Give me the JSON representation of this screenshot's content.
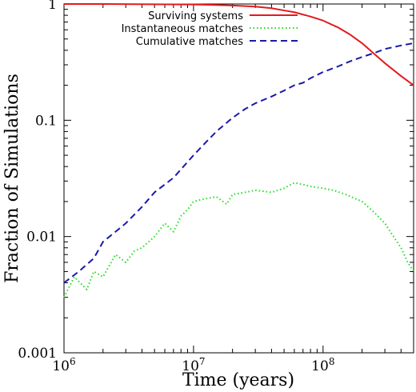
{
  "chart_data": {
    "type": "line",
    "title": "",
    "xlabel": "Time (years)",
    "ylabel": "Fraction of Simulations",
    "x_scale": "log",
    "y_scale": "log",
    "xlim": [
      1000000,
      500000000
    ],
    "ylim": [
      0.001,
      1
    ],
    "grid": false,
    "legend_position": "top-right",
    "x_ticks": [
      {
        "value": 1000000,
        "base": "10",
        "exp": "6"
      },
      {
        "value": 10000000,
        "base": "10",
        "exp": "7"
      },
      {
        "value": 100000000,
        "base": "10",
        "exp": "8"
      }
    ],
    "y_ticks": [
      {
        "value": 0.001,
        "label": "0.001"
      },
      {
        "value": 0.01,
        "label": "0.01"
      },
      {
        "value": 0.1,
        "label": "0.1"
      },
      {
        "value": 1,
        "label": "1"
      }
    ],
    "series": [
      {
        "name": "Surviving systems",
        "color": "#e41a1c",
        "style": "solid",
        "x": [
          1000000,
          2000000,
          5000000,
          10000000,
          15000000,
          20000000,
          30000000,
          40000000,
          50000000,
          60000000,
          80000000,
          100000000,
          130000000,
          160000000,
          200000000,
          250000000,
          300000000,
          400000000,
          500000000
        ],
        "y": [
          1.0,
          1.0,
          0.995,
          0.99,
          0.98,
          0.97,
          0.95,
          0.92,
          0.88,
          0.85,
          0.78,
          0.72,
          0.63,
          0.55,
          0.46,
          0.37,
          0.31,
          0.24,
          0.2
        ]
      },
      {
        "name": "Instantaneous matches",
        "color": "#22dd22",
        "style": "dotted",
        "x": [
          1000000,
          1200000,
          1500000,
          1700000,
          2000000,
          2500000,
          3000000,
          3500000,
          4000000,
          5000000,
          6000000,
          7000000,
          8000000,
          9000000,
          10000000,
          12000000,
          15000000,
          18000000,
          20000000,
          25000000,
          30000000,
          40000000,
          50000000,
          60000000,
          70000000,
          80000000,
          100000000,
          120000000,
          150000000,
          200000000,
          250000000,
          300000000,
          350000000,
          400000000,
          450000000,
          500000000
        ],
        "y": [
          0.003,
          0.0045,
          0.0035,
          0.005,
          0.0045,
          0.007,
          0.006,
          0.0075,
          0.008,
          0.01,
          0.013,
          0.011,
          0.015,
          0.017,
          0.02,
          0.021,
          0.022,
          0.019,
          0.023,
          0.024,
          0.025,
          0.024,
          0.026,
          0.029,
          0.028,
          0.027,
          0.026,
          0.025,
          0.023,
          0.02,
          0.016,
          0.013,
          0.01,
          0.008,
          0.006,
          0.005
        ]
      },
      {
        "name": "Cumulative matches",
        "color": "#1a1aa8",
        "style": "dashed",
        "x": [
          1000000,
          1300000,
          1700000,
          2000000,
          2500000,
          3000000,
          4000000,
          5000000,
          7000000,
          10000000,
          12000000,
          15000000,
          20000000,
          25000000,
          30000000,
          40000000,
          50000000,
          60000000,
          70000000,
          80000000,
          100000000,
          130000000,
          160000000,
          200000000,
          250000000,
          300000000,
          400000000,
          500000000
        ],
        "y": [
          0.004,
          0.005,
          0.0065,
          0.009,
          0.011,
          0.013,
          0.018,
          0.024,
          0.032,
          0.05,
          0.062,
          0.08,
          0.105,
          0.125,
          0.14,
          0.16,
          0.18,
          0.2,
          0.21,
          0.23,
          0.26,
          0.29,
          0.32,
          0.35,
          0.38,
          0.41,
          0.44,
          0.46
        ]
      }
    ]
  }
}
